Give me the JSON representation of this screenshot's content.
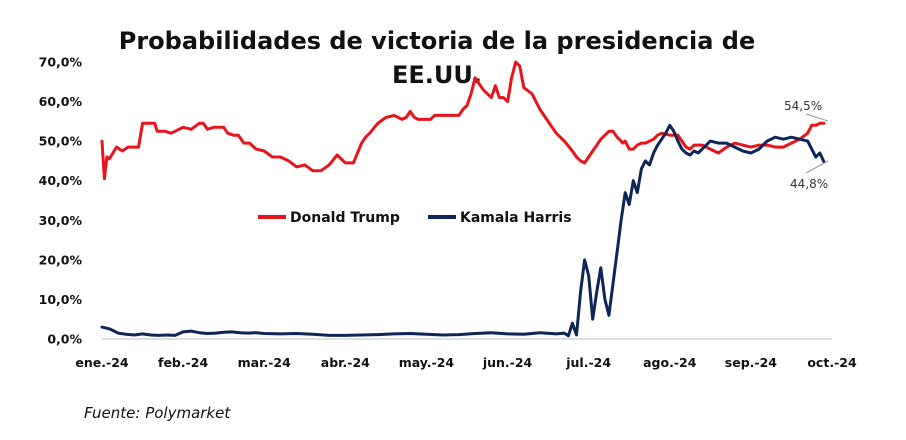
{
  "chart_data": {
    "type": "line",
    "title_line1": "Probabilidades de victoria de la presidencia de",
    "title_line2": "EE.UU.",
    "xlabel": "",
    "ylabel": "",
    "x_ticks": [
      "ene.-24",
      "feb.-24",
      "mar.-24",
      "abr.-24",
      "may.-24",
      "jun.-24",
      "jul.-24",
      "ago.-24",
      "sep.-24",
      "oct.-24"
    ],
    "y_ticks": [
      "0,0%",
      "10,0%",
      "20,0%",
      "30,0%",
      "40,0%",
      "50,0%",
      "60,0%",
      "70,0%"
    ],
    "xlim": [
      0,
      9
    ],
    "ylim": [
      0,
      70
    ],
    "grid": false,
    "legend_position": "center-left",
    "annotations": [
      {
        "text": "54,5%",
        "series": "Donald Trump"
      },
      {
        "text": "44,8%",
        "series": "Kamala Harris"
      }
    ],
    "series": [
      {
        "name": "Donald Trump",
        "color": "#e8141b",
        "x": [
          0.0,
          0.03,
          0.06,
          0.09,
          0.12,
          0.18,
          0.25,
          0.32,
          0.38,
          0.45,
          0.5,
          0.58,
          0.65,
          0.68,
          0.72,
          0.78,
          0.85,
          0.9,
          1.0,
          1.1,
          1.2,
          1.25,
          1.3,
          1.38,
          1.45,
          1.5,
          1.55,
          1.62,
          1.68,
          1.75,
          1.82,
          1.9,
          2.0,
          2.1,
          2.2,
          2.3,
          2.4,
          2.5,
          2.6,
          2.7,
          2.8,
          2.9,
          3.0,
          3.1,
          3.2,
          3.25,
          3.3,
          3.4,
          3.5,
          3.6,
          3.7,
          3.75,
          3.8,
          3.85,
          3.9,
          3.95,
          4.0,
          4.05,
          4.1,
          4.2,
          4.25,
          4.3,
          4.4,
          4.45,
          4.5,
          4.55,
          4.6,
          4.7,
          4.8,
          4.85,
          4.9,
          4.95,
          5.0,
          5.05,
          5.1,
          5.15,
          5.2,
          5.3,
          5.4,
          5.5,
          5.6,
          5.7,
          5.8,
          5.85,
          5.9,
          5.95,
          6.0,
          6.05,
          6.1,
          6.15,
          6.2,
          6.25,
          6.3,
          6.35,
          6.4,
          6.42,
          6.45,
          6.5,
          6.55,
          6.6,
          6.65,
          6.7,
          6.75,
          6.8,
          6.85,
          6.9,
          7.0,
          7.1,
          7.15,
          7.2,
          7.25,
          7.3,
          7.4,
          7.5,
          7.6,
          7.7,
          7.8,
          7.9,
          8.0,
          8.1,
          8.2,
          8.3,
          8.4,
          8.5,
          8.6,
          8.7,
          8.75,
          8.8,
          8.85,
          8.9
        ],
        "values": [
          50,
          40.5,
          46,
          45.5,
          46.5,
          48.5,
          47.5,
          48.5,
          48.5,
          48.5,
          54.5,
          54.5,
          54.5,
          52.5,
          52.5,
          52.5,
          52,
          52.5,
          53.5,
          53,
          54.5,
          54.5,
          53,
          53.5,
          53.5,
          53.5,
          52,
          51.5,
          51.5,
          49.5,
          49.5,
          48,
          47.5,
          46,
          46,
          45,
          43.5,
          44,
          42.5,
          42.5,
          44,
          46.5,
          44.5,
          44.5,
          49.5,
          51,
          52,
          54.5,
          56,
          56.5,
          55.5,
          56,
          57.5,
          56,
          55.5,
          55.5,
          55.5,
          55.5,
          56.5,
          56.5,
          56.5,
          56.5,
          56.5,
          58,
          59,
          62,
          66,
          63,
          61,
          64,
          61,
          61,
          60,
          66,
          70,
          69,
          63.5,
          62,
          58,
          55,
          52,
          50,
          47.5,
          46,
          45,
          44.5,
          46,
          47.5,
          49,
          50.5,
          51.5,
          52.5,
          52.5,
          51,
          50,
          49.5,
          50,
          48,
          48,
          49,
          49.5,
          49.5,
          50,
          50.5,
          51.5,
          52,
          51.5,
          51.5,
          50,
          48.5,
          48,
          49,
          49,
          48,
          47,
          48.5,
          49.5,
          49,
          48.5,
          49,
          49,
          48.5,
          48.5,
          49.5,
          50.5,
          52,
          54,
          54,
          54.5,
          54.5
        ]
      },
      {
        "name": "Kamala Harris",
        "color": "#0e2557",
        "x": [
          0.0,
          0.1,
          0.2,
          0.3,
          0.4,
          0.5,
          0.6,
          0.7,
          0.8,
          0.9,
          1.0,
          1.1,
          1.2,
          1.3,
          1.4,
          1.5,
          1.6,
          1.7,
          1.8,
          1.9,
          2.0,
          2.2,
          2.4,
          2.6,
          2.8,
          3.0,
          3.2,
          3.4,
          3.6,
          3.8,
          4.0,
          4.2,
          4.4,
          4.6,
          4.8,
          5.0,
          5.2,
          5.4,
          5.6,
          5.7,
          5.75,
          5.8,
          5.85,
          5.9,
          5.95,
          6.0,
          6.05,
          6.1,
          6.15,
          6.2,
          6.25,
          6.3,
          6.35,
          6.4,
          6.45,
          6.5,
          6.55,
          6.6,
          6.65,
          6.7,
          6.75,
          6.8,
          6.85,
          6.9,
          6.95,
          7.0,
          7.05,
          7.1,
          7.15,
          7.2,
          7.25,
          7.3,
          7.35,
          7.4,
          7.5,
          7.6,
          7.7,
          7.8,
          7.9,
          8.0,
          8.1,
          8.2,
          8.3,
          8.4,
          8.5,
          8.6,
          8.7,
          8.75,
          8.8,
          8.85,
          8.9
        ],
        "values": [
          3,
          2.5,
          1.5,
          1.2,
          1.0,
          1.3,
          1.0,
          0.9,
          1.0,
          0.9,
          1.8,
          2.0,
          1.6,
          1.4,
          1.5,
          1.7,
          1.8,
          1.6,
          1.5,
          1.6,
          1.4,
          1.3,
          1.4,
          1.2,
          0.9,
          0.9,
          1.0,
          1.1,
          1.3,
          1.4,
          1.2,
          1.0,
          1.1,
          1.4,
          1.6,
          1.3,
          1.2,
          1.6,
          1.3,
          1.5,
          0.8,
          4,
          1,
          12,
          20,
          16,
          5,
          12,
          18,
          10,
          6,
          14,
          22,
          30,
          37,
          34,
          40,
          37,
          43,
          45,
          44,
          47,
          49,
          50.5,
          52,
          54,
          52.5,
          50,
          48,
          47,
          46.5,
          47.5,
          47,
          48,
          50,
          49.5,
          49.5,
          48.5,
          47.5,
          47,
          48,
          50,
          51,
          50.5,
          51,
          50.5,
          50,
          48,
          46,
          47,
          44.8
        ]
      }
    ]
  },
  "source": "Fuente: Polymarket"
}
